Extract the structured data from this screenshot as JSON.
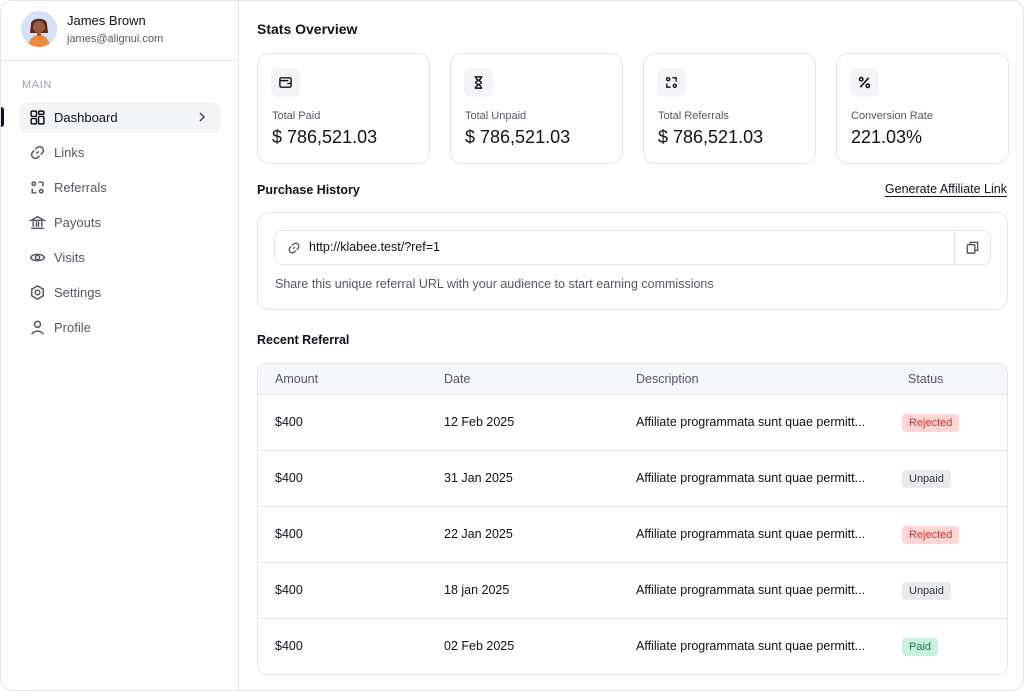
{
  "user": {
    "name": "James Brown",
    "email": "james@alignui.com"
  },
  "sidebar": {
    "section_label": "MAIN",
    "items": [
      {
        "label": "Dashboard",
        "icon": "grid-icon",
        "active": true
      },
      {
        "label": "Links",
        "icon": "link-icon"
      },
      {
        "label": "Referrals",
        "icon": "referral-icon"
      },
      {
        "label": "Payouts",
        "icon": "bank-icon"
      },
      {
        "label": "Visits",
        "icon": "eye-icon"
      },
      {
        "label": "Settings",
        "icon": "gear-icon"
      },
      {
        "label": "Profile",
        "icon": "user-icon"
      }
    ]
  },
  "main": {
    "title": "Stats Overview",
    "stats": [
      {
        "label": "Total Paid",
        "value": "$ 786,521.03",
        "icon": "wallet-icon"
      },
      {
        "label": "Total Unpaid",
        "value": "$ 786,521.03",
        "icon": "hourglass-icon"
      },
      {
        "label": "Total Referrals",
        "value": "$ 786,521.03",
        "icon": "referral-icon"
      },
      {
        "label": "Conversion Rate",
        "value": "221.03%",
        "icon": "percent-icon"
      }
    ],
    "purchase_history": {
      "title": "Purchase History",
      "generate_link_label": "Generate Affiliate Link",
      "referral_url": "http://klabee.test/?ref=1",
      "hint": "Share this unique referral URL with your audience to start earning commissions"
    },
    "recent_referral": {
      "title": "Recent Referral",
      "columns": [
        "Amount",
        "Date",
        "Description",
        "Status"
      ],
      "rows": [
        {
          "amount": "$400",
          "date": "12 Feb 2025",
          "description": "Affiliate programmata sunt quae permitt...",
          "status": "Rejected"
        },
        {
          "amount": "$400",
          "date": "31 Jan 2025",
          "description": "Affiliate programmata sunt quae permitt...",
          "status": "Unpaid"
        },
        {
          "amount": "$400",
          "date": "22 Jan 2025",
          "description": "Affiliate programmata sunt quae permitt...",
          "status": "Rejected"
        },
        {
          "amount": "$400",
          "date": "18 jan 2025",
          "description": "Affiliate programmata sunt quae permitt...",
          "status": "Unpaid"
        },
        {
          "amount": "$400",
          "date": "02 Feb 2025",
          "description": "Affiliate programmata sunt quae permitt...",
          "status": "Paid"
        }
      ]
    }
  },
  "colors": {
    "status_rejected": "#ffd5d8",
    "status_unpaid": "#e7e9ee",
    "status_paid": "#c9f2dc",
    "text_primary": "#0e121b"
  }
}
